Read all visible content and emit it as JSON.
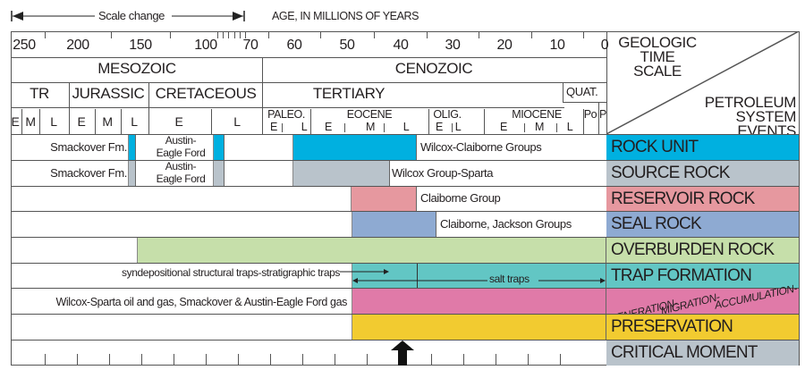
{
  "header": {
    "scale_change": "Scale change",
    "age_label": "AGE, IN MILLIONS OF YEARS"
  },
  "ages": [
    "250",
    "200",
    "150",
    "100",
    "70",
    "60",
    "50",
    "40",
    "30",
    "20",
    "10",
    "0"
  ],
  "eras": {
    "mesozoic": "MESOZOIC",
    "cenozoic": "CENOZOIC"
  },
  "periods": {
    "triassic": "TR",
    "jurassic": "JURASSIC",
    "cretaceous": "CRETACEOUS",
    "tertiary": "TERTIARY",
    "quaternary": "QUAT."
  },
  "epochs": {
    "paleo": "PALEO.",
    "eocene": "EOCENE",
    "olig": "OLIG.",
    "miocene": "MIOCENE",
    "plio": "Po",
    "pleist": "P"
  },
  "subdivisions": {
    "e": "E",
    "m": "M",
    "l": "L"
  },
  "corner": {
    "top": "GEOLOGIC TIME SCALE",
    "bottom": "PETROLEUM SYSTEM EVENTS"
  },
  "events": [
    {
      "label": "ROCK UNIT",
      "color": "#00b0e0"
    },
    {
      "label": "SOURCE ROCK",
      "color": "#b9c3cb"
    },
    {
      "label": "RESERVOIR ROCK",
      "color": "#e6989f"
    },
    {
      "label": "SEAL ROCK",
      "color": "#8eaad2"
    },
    {
      "label": "OVERBURDEN ROCK",
      "color": "#c6dfaa"
    },
    {
      "label": "TRAP FORMATION",
      "color": "#62c6c4"
    },
    {
      "label": "GENERATION-MIGRATION-ACCUMULATION-",
      "color": "#e07aa8"
    },
    {
      "label": "PRESERVATION",
      "color": "#f2cb30"
    },
    {
      "label": "CRITICAL MOMENT",
      "color": "#b9c3cb"
    }
  ],
  "annotations": {
    "smackover": "Smackover Fm.",
    "austin": "Austin-",
    "eagle_ford": "Eagle Ford",
    "wilcox_claiborne": "Wilcox-Claiborne Groups",
    "wilcox_sparta": "Wilcox Group-Sparta",
    "claiborne": "Claiborne Group",
    "claiborne_jackson": "Claiborne, Jackson Groups",
    "trap_text": "syndepositional structural traps-stratigraphic traps",
    "salt_traps": "salt traps",
    "gen_text": "Wilcox-Sparta oil and gas, Smackover & Austin-Eagle Ford gas"
  },
  "gen_words": [
    "GENERATION-",
    "MIGRATION-",
    "ACCUMULATION-"
  ]
}
